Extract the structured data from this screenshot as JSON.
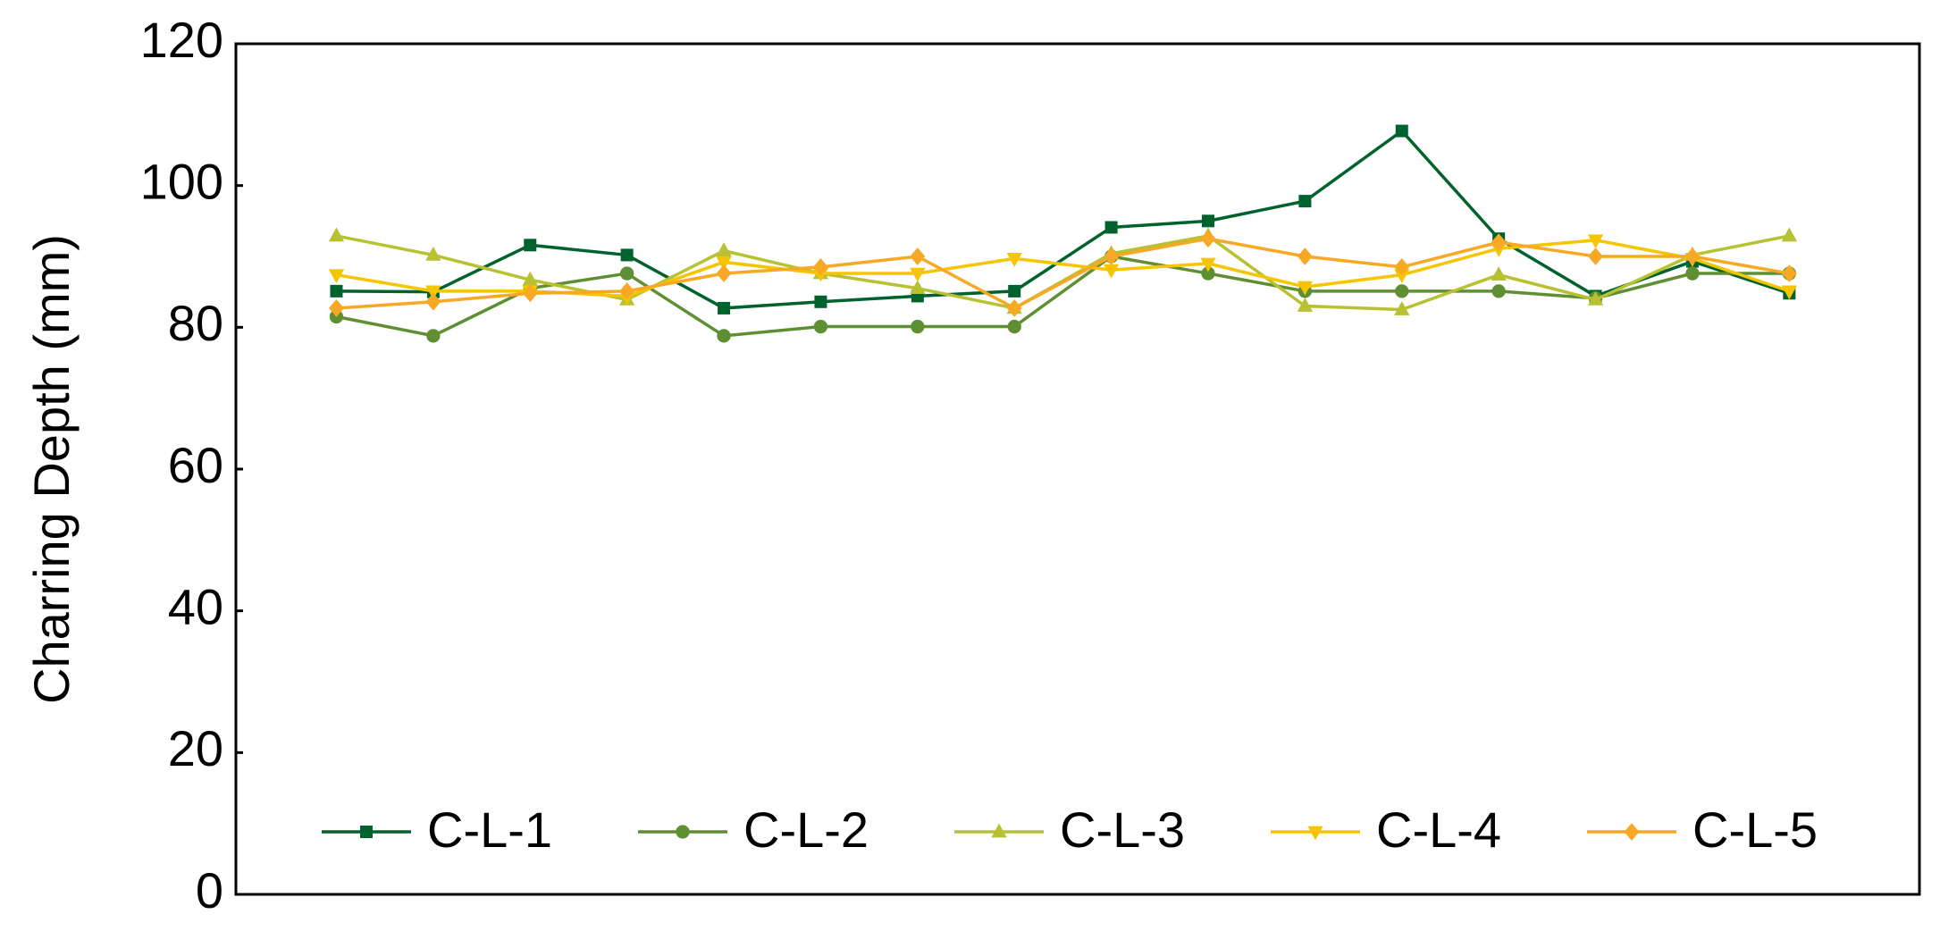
{
  "chart_data": {
    "type": "line",
    "y_label": "Charring Depth (mm)",
    "categories": [
      null,
      null,
      null,
      null,
      null,
      null,
      null,
      null,
      null,
      null,
      null,
      null,
      null,
      null,
      null,
      null
    ],
    "series": [
      {
        "name": "C-L-1",
        "color": "#00622d",
        "marker": "square",
        "values": [
          85.1,
          85.0,
          91.6,
          90.2,
          82.7,
          83.6,
          84.4,
          85.1,
          94.1,
          95.0,
          97.8,
          107.7,
          92.5,
          84.4,
          89.3,
          84.8
        ]
      },
      {
        "name": "C-L-2",
        "color": "#5e8f32",
        "marker": "circle",
        "values": [
          81.5,
          78.8,
          85.5,
          87.6,
          78.8,
          80.1,
          80.1,
          80.1,
          90.0,
          87.6,
          85.1,
          85.1,
          85.1,
          84.1,
          87.6,
          87.6
        ]
      },
      {
        "name": "C-L-3",
        "color": "#b8c132",
        "marker": "triangle-up",
        "values": [
          92.9,
          90.2,
          86.7,
          83.9,
          90.8,
          87.6,
          85.5,
          82.7,
          90.4,
          92.9,
          83.0,
          82.5,
          87.4,
          83.9,
          90.2,
          92.9
        ]
      },
      {
        "name": "C-L-4",
        "color": "#f6c500",
        "marker": "triangle-down",
        "values": [
          87.4,
          85.1,
          85.1,
          84.4,
          89.2,
          87.6,
          87.6,
          89.7,
          88.1,
          89.0,
          85.7,
          87.4,
          91.1,
          92.3,
          89.7,
          85.1
        ]
      },
      {
        "name": "C-L-5",
        "color": "#f7a824",
        "marker": "diamond",
        "values": [
          82.7,
          83.6,
          84.8,
          85.1,
          87.6,
          88.5,
          90.0,
          82.7,
          90.0,
          92.5,
          90.0,
          88.5,
          92.0,
          90.0,
          90.0,
          87.6
        ]
      }
    ],
    "ylim": [
      0,
      120
    ],
    "yticks": [
      0,
      20,
      40,
      60,
      80,
      100,
      120
    ],
    "grid": false,
    "legend": "bottom"
  }
}
